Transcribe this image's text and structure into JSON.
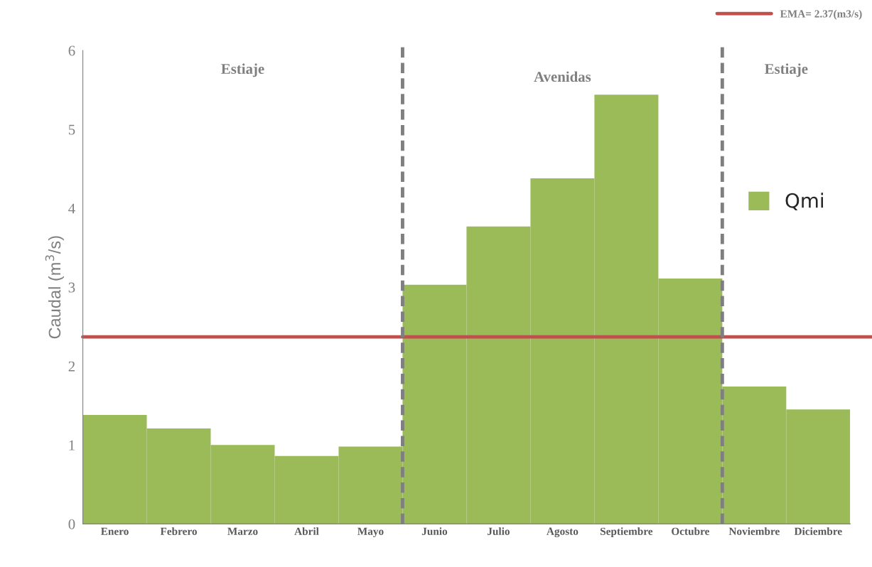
{
  "chart_data": {
    "type": "bar",
    "ylabel": "Caudal (m$^{3}$/s)",
    "categories": [
      "Enero",
      "Febrero",
      "Marzo",
      "Abril",
      "Mayo",
      "Junio",
      "Julio",
      "Agosto",
      "Septiembre",
      "Octubre",
      "Noviembre",
      "Diciembre"
    ],
    "series": [
      {
        "name": "Qmi",
        "color": "#9bbb59",
        "values": [
          1.38,
          1.21,
          1.0,
          0.86,
          0.98,
          3.03,
          3.77,
          4.38,
          5.44,
          3.11,
          1.74,
          1.45
        ]
      }
    ],
    "ylim": [
      0,
      6
    ],
    "yticks": [
      0,
      1,
      2,
      3,
      4,
      5,
      6
    ],
    "ref_lines": [
      {
        "axis": "y",
        "value": 2.37,
        "label": "EMA= 2.37(m3/s)",
        "color": "#c0504d",
        "line_style": "solid"
      }
    ],
    "annotations": [
      "Estiaje",
      "Avenidas",
      "Estiaje"
    ],
    "grid": false,
    "legend": "right"
  }
}
